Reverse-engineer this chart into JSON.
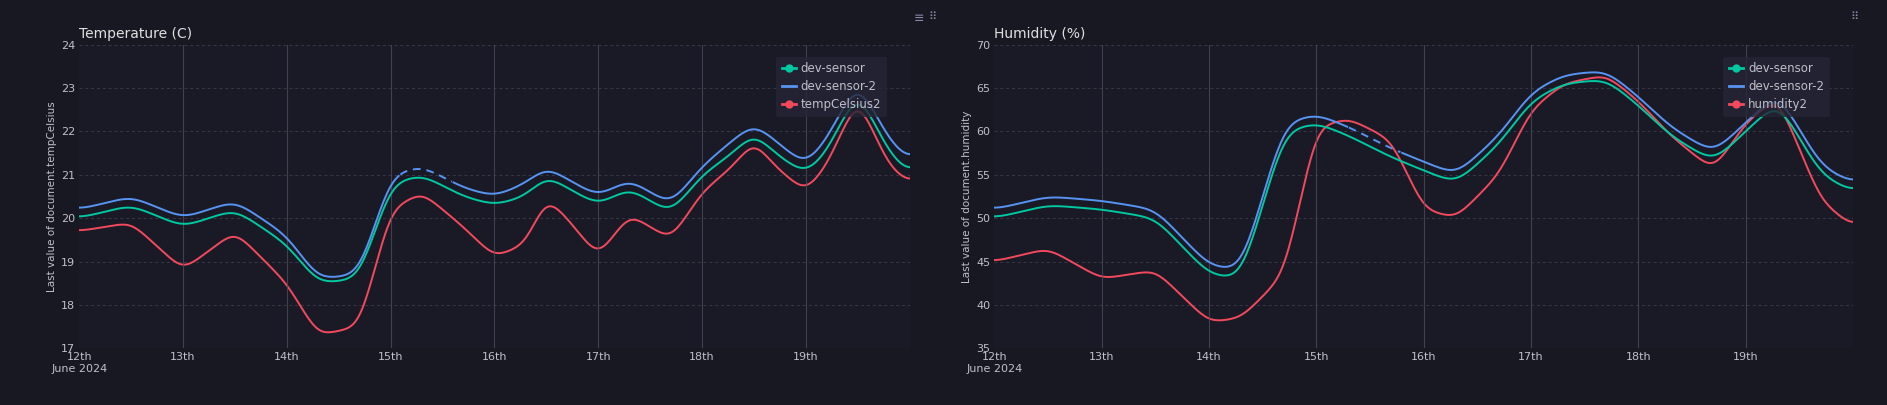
{
  "bg_color": "#181822",
  "panel_bg": "#1a1a27",
  "grid_color": "#444455",
  "text_color": "#c0c0cc",
  "title_color": "#e0e0e0",
  "temp_title": "Temperature (C)",
  "temp_ylabel": "Last value of document.tempCelsius",
  "temp_ylim": [
    17,
    24
  ],
  "temp_yticks": [
    17,
    18,
    19,
    20,
    21,
    22,
    23,
    24
  ],
  "hum_title": "Humidity (%)",
  "hum_ylabel": "Last value of document.humidity",
  "hum_ylim": [
    35,
    70
  ],
  "hum_yticks": [
    35,
    40,
    45,
    50,
    55,
    60,
    65,
    70
  ],
  "color_green": "#00c8a0",
  "color_blue": "#5794f2",
  "color_pink": "#f2495c",
  "legend_temp": [
    "dev-sensor",
    "dev-sensor-2",
    "tempCelsius2"
  ],
  "legend_hum": [
    "dev-sensor",
    "dev-sensor-2",
    "humidity2"
  ]
}
